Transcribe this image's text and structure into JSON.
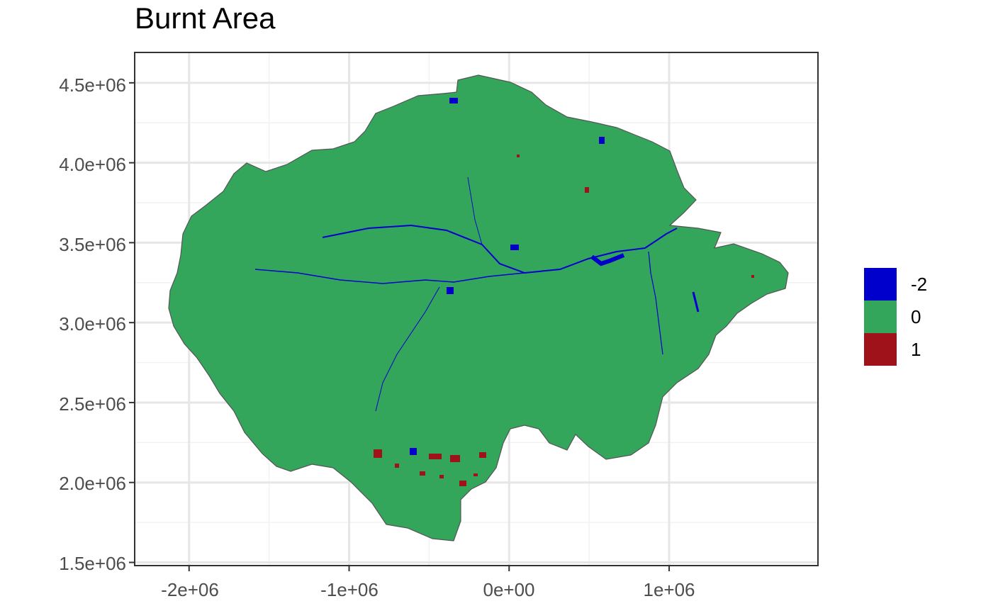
{
  "chart_data": {
    "type": "raster-map",
    "title": "Burnt Area",
    "xlabel": "",
    "ylabel": "",
    "x_ticks": [
      {
        "value": -2000000,
        "label": "-2e+06"
      },
      {
        "value": -1000000,
        "label": "-1e+06"
      },
      {
        "value": 0,
        "label": "0e+00"
      },
      {
        "value": 1000000,
        "label": "1e+06"
      }
    ],
    "y_ticks": [
      {
        "value": 1500000,
        "label": "1.5e+06"
      },
      {
        "value": 2000000,
        "label": "2.0e+06"
      },
      {
        "value": 2500000,
        "label": "2.5e+06"
      },
      {
        "value": 3000000,
        "label": "3.0e+06"
      },
      {
        "value": 3500000,
        "label": "3.5e+06"
      },
      {
        "value": 4000000,
        "label": "4.0e+06"
      },
      {
        "value": 4500000,
        "label": "4.5e+06"
      }
    ],
    "xlim": [
      -2340000,
      1930000
    ],
    "ylim": [
      1480000,
      4690000
    ],
    "grid": true,
    "legend": {
      "placement": "right",
      "entries": [
        {
          "label": "-2",
          "color": "#0000cd"
        },
        {
          "label": "0",
          "color": "#33a65c"
        },
        {
          "label": "1",
          "color": "#a0121a"
        }
      ]
    },
    "colors": {
      "land": "#33a65c",
      "water": "#0000cd",
      "burnt": "#a0121a",
      "outline": "#555555",
      "panel_border": "#333333",
      "grid": "#e6e6e6"
    }
  }
}
